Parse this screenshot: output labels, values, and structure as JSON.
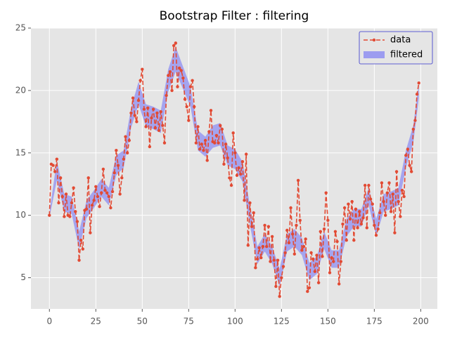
{
  "chart_data": {
    "type": "line",
    "title": "Bootstrap Filter : filtering",
    "xlim": [
      -9.95,
      208.95
    ],
    "ylim": [
      2.5,
      25
    ],
    "xticks": [
      0,
      25,
      50,
      75,
      100,
      125,
      150,
      175,
      200
    ],
    "yticks": [
      5,
      10,
      15,
      20,
      25
    ],
    "grid": true,
    "legend": "upper right",
    "series": [
      {
        "name": "data",
        "color": "#e24a33",
        "x": [
          0,
          1,
          2,
          3,
          4,
          5,
          6,
          7,
          8,
          9,
          10,
          11,
          12,
          13,
          14,
          15,
          16,
          17,
          18,
          19,
          20,
          21,
          22,
          23,
          24,
          25,
          26,
          27,
          28,
          29,
          30,
          31,
          32,
          33,
          34,
          35,
          36,
          37,
          38,
          39,
          40,
          41,
          42,
          43,
          44,
          45,
          46,
          47,
          48,
          49,
          50,
          51,
          52,
          53,
          54,
          55,
          56,
          57,
          58,
          59,
          60,
          61,
          62,
          63,
          64,
          65,
          66,
          67,
          68,
          69,
          70,
          71,
          72,
          73,
          74,
          75,
          76,
          77,
          78,
          79,
          80,
          81,
          82,
          83,
          84,
          85,
          86,
          87,
          88,
          89,
          90,
          91,
          92,
          93,
          94,
          95,
          96,
          97,
          98,
          99,
          100,
          101,
          102,
          103,
          104,
          105,
          106,
          107,
          108,
          109,
          110,
          111,
          112,
          113,
          114,
          115,
          116,
          117,
          118,
          119,
          120,
          121,
          122,
          123,
          124,
          125,
          126,
          127,
          128,
          129,
          130,
          131,
          132,
          133,
          134,
          135,
          136,
          137,
          138,
          139,
          140,
          141,
          142,
          143,
          144,
          145,
          146,
          147,
          148,
          149,
          150,
          151,
          152,
          153,
          154,
          155,
          156,
          157,
          158,
          159,
          160,
          161,
          162,
          163,
          164,
          165,
          166,
          167,
          168,
          169,
          170,
          171,
          172,
          173,
          174,
          175,
          176,
          177,
          178,
          179,
          180,
          181,
          182,
          183,
          184,
          185,
          186,
          187,
          188,
          189,
          190,
          191,
          192,
          193,
          194,
          195,
          196,
          197,
          198,
          199
        ],
        "values": [
          10.0,
          14.1,
          14.0,
          13.5,
          14.5,
          11.0,
          13.0,
          11.5,
          9.9,
          11.7,
          10.0,
          9.9,
          11.0,
          12.2,
          10.3,
          9.5,
          6.4,
          8.0,
          7.3,
          10.4,
          10.5,
          13.0,
          8.6,
          10.8,
          11.2,
          12.3,
          11.5,
          10.7,
          11.8,
          13.7,
          12.0,
          11.8,
          11.5,
          10.6,
          11.9,
          13.4,
          15.2,
          14.0,
          11.7,
          13.0,
          14.5,
          16.3,
          15.0,
          16.0,
          18.2,
          19.4,
          18.0,
          17.5,
          19.2,
          20.8,
          21.7,
          18.5,
          17.1,
          18.6,
          15.5,
          17.8,
          18.5,
          17.0,
          18.2,
          16.8,
          18.3,
          17.2,
          15.8,
          19.6,
          21.2,
          21.5,
          20.0,
          23.6,
          23.8,
          20.3,
          21.8,
          21.6,
          21.0,
          19.3,
          18.7,
          17.6,
          20.3,
          20.8,
          18.7,
          15.8,
          17.1,
          15.3,
          15.7,
          15.2,
          16.0,
          14.4,
          16.7,
          18.4,
          15.9,
          15.8,
          16.4,
          15.8,
          17.2,
          16.9,
          14.1,
          15.7,
          14.6,
          13.0,
          12.4,
          16.6,
          15.0,
          13.2,
          13.8,
          13.3,
          14.3,
          11.2,
          14.9,
          7.6,
          11.0,
          9.1,
          10.2,
          5.8,
          6.5,
          7.4,
          6.6,
          7.5,
          9.2,
          7.5,
          9.1,
          6.3,
          8.3,
          6.4,
          4.3,
          6.4,
          3.5,
          5.0,
          5.9,
          7.0,
          8.8,
          7.8,
          10.6,
          8.5,
          6.9,
          9.2,
          12.8,
          9.6,
          7.2,
          7.5,
          8.1,
          3.9,
          4.2,
          7.0,
          6.5,
          5.5,
          6.8,
          4.6,
          8.7,
          6.7,
          8.9,
          11.8,
          9.6,
          5.4,
          6.6,
          6.3,
          8.7,
          7.9,
          4.5,
          6.3,
          9.3,
          10.6,
          8.0,
          10.9,
          9.7,
          11.1,
          8.0,
          10.5,
          9.0,
          10.3,
          9.3,
          9.8,
          12.4,
          9.0,
          12.4,
          11.3,
          10.9,
          9.2,
          8.4,
          8.9,
          10.2,
          12.6,
          11.1,
          10.0,
          11.8,
          12.6,
          10.3,
          11.7,
          8.6,
          13.5,
          11.1,
          9.9,
          12.0,
          11.5,
          14.8,
          15.3,
          14.0,
          13.5,
          16.9,
          17.6,
          19.7,
          20.6
        ]
      },
      {
        "name": "filtered",
        "color": "#9c9cf0",
        "x": [
          0,
          4,
          8,
          12,
          16,
          20,
          24,
          28,
          32,
          36,
          40,
          44,
          48,
          52,
          56,
          60,
          64,
          68,
          72,
          76,
          80,
          84,
          88,
          92,
          96,
          100,
          104,
          108,
          112,
          116,
          120,
          124,
          128,
          132,
          136,
          140,
          144,
          148,
          152,
          156,
          160,
          164,
          168,
          172,
          176,
          180,
          184,
          188,
          192,
          196,
          199
        ],
        "lower": [
          9.8,
          12.8,
          10.3,
          10.1,
          7.3,
          9.8,
          10.6,
          11.5,
          10.8,
          13.2,
          13.8,
          17.0,
          18.9,
          17.1,
          16.9,
          16.6,
          19.9,
          21.5,
          20.1,
          18.7,
          15.2,
          14.7,
          15.4,
          15.6,
          14.0,
          13.7,
          12.7,
          9.2,
          6.1,
          7.1,
          6.1,
          4.3,
          7.1,
          7.5,
          6.8,
          4.8,
          5.3,
          7.3,
          5.8,
          5.8,
          8.3,
          9.1,
          9.1,
          10.8,
          8.3,
          10.3,
          10.5,
          10.8,
          13.8,
          15.8,
          19.4
        ],
        "upper": [
          10.2,
          14.4,
          11.7,
          11.5,
          8.7,
          11.2,
          12.0,
          12.9,
          12.2,
          14.8,
          15.2,
          18.6,
          20.7,
          18.9,
          18.7,
          18.4,
          21.7,
          23.5,
          21.9,
          20.3,
          16.8,
          16.3,
          17.2,
          17.4,
          15.6,
          15.3,
          14.3,
          10.8,
          7.5,
          8.5,
          7.5,
          5.7,
          8.5,
          8.9,
          8.2,
          6.2,
          6.7,
          8.7,
          7.2,
          7.2,
          9.7,
          10.5,
          10.5,
          12.2,
          9.7,
          11.7,
          11.9,
          12.2,
          15.2,
          17.2,
          20.6
        ]
      }
    ]
  }
}
